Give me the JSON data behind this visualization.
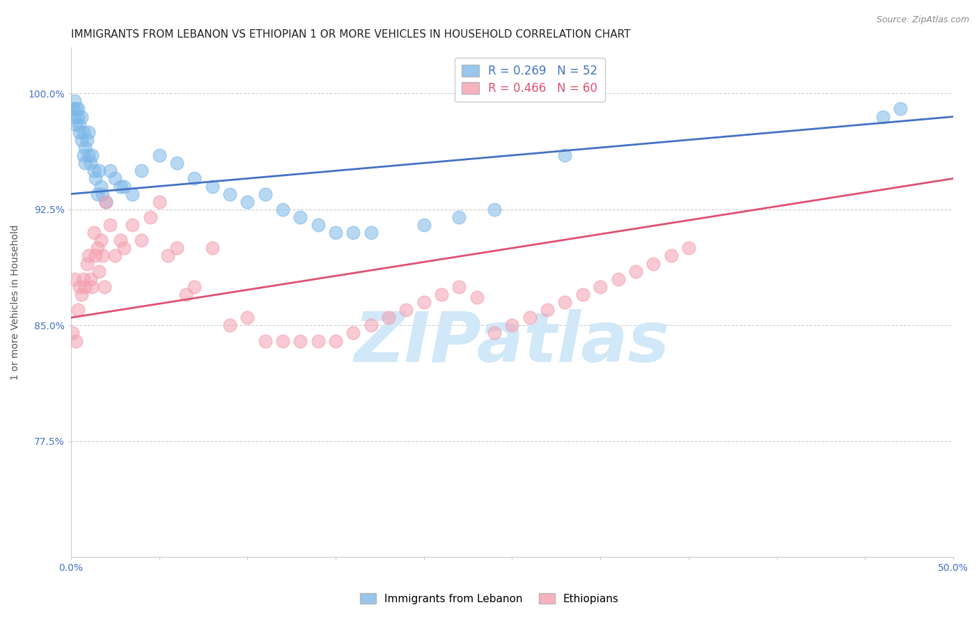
{
  "title": "IMMIGRANTS FROM LEBANON VS ETHIOPIAN 1 OR MORE VEHICLES IN HOUSEHOLD CORRELATION CHART",
  "source": "Source: ZipAtlas.com",
  "ylabel": "1 or more Vehicles in Household",
  "xlim": [
    0.0,
    0.5
  ],
  "ylim": [
    0.7,
    1.03
  ],
  "xticks": [
    0.0,
    0.05,
    0.1,
    0.15,
    0.2,
    0.25,
    0.3,
    0.35,
    0.4,
    0.45,
    0.5
  ],
  "xticklabels": [
    "0.0%",
    "",
    "",
    "",
    "",
    "",
    "",
    "",
    "",
    "",
    "50.0%"
  ],
  "yticks": [
    0.775,
    0.85,
    0.925,
    1.0
  ],
  "yticklabels": [
    "77.5%",
    "85.0%",
    "92.5%",
    "100.0%"
  ],
  "grid_color": "#cccccc",
  "legend_label_blue": "R = 0.269   N = 52",
  "legend_label_pink": "R = 0.466   N = 60",
  "blue_color": "#7eb8e8",
  "pink_color": "#f4a0b0",
  "blue_line_color": "#4472c4",
  "pink_line_color": "#e05070",
  "watermark": "ZIPatlas",
  "watermark_color": "#d0e8f8",
  "blue_x": [
    0.001,
    0.002,
    0.002,
    0.003,
    0.003,
    0.004,
    0.004,
    0.005,
    0.005,
    0.006,
    0.006,
    0.007,
    0.007,
    0.008,
    0.008,
    0.009,
    0.01,
    0.01,
    0.011,
    0.012,
    0.013,
    0.014,
    0.015,
    0.016,
    0.017,
    0.018,
    0.02,
    0.022,
    0.025,
    0.028,
    0.03,
    0.035,
    0.04,
    0.05,
    0.06,
    0.07,
    0.08,
    0.09,
    0.1,
    0.11,
    0.12,
    0.13,
    0.14,
    0.15,
    0.16,
    0.17,
    0.2,
    0.22,
    0.24,
    0.28,
    0.46,
    0.47
  ],
  "blue_y": [
    0.99,
    0.995,
    0.985,
    0.99,
    0.98,
    0.99,
    0.985,
    0.975,
    0.98,
    0.985,
    0.97,
    0.96,
    0.975,
    0.965,
    0.955,
    0.97,
    0.96,
    0.975,
    0.955,
    0.96,
    0.95,
    0.945,
    0.935,
    0.95,
    0.94,
    0.935,
    0.93,
    0.95,
    0.945,
    0.94,
    0.94,
    0.935,
    0.95,
    0.96,
    0.955,
    0.945,
    0.94,
    0.935,
    0.93,
    0.935,
    0.925,
    0.92,
    0.915,
    0.91,
    0.91,
    0.91,
    0.915,
    0.92,
    0.925,
    0.96,
    0.985,
    0.99
  ],
  "pink_x": [
    0.001,
    0.002,
    0.003,
    0.004,
    0.005,
    0.006,
    0.007,
    0.008,
    0.009,
    0.01,
    0.011,
    0.012,
    0.013,
    0.014,
    0.015,
    0.016,
    0.017,
    0.018,
    0.019,
    0.02,
    0.022,
    0.025,
    0.028,
    0.03,
    0.035,
    0.04,
    0.045,
    0.05,
    0.055,
    0.06,
    0.065,
    0.07,
    0.08,
    0.09,
    0.1,
    0.11,
    0.12,
    0.13,
    0.14,
    0.15,
    0.16,
    0.17,
    0.18,
    0.19,
    0.2,
    0.21,
    0.22,
    0.23,
    0.24,
    0.25,
    0.26,
    0.27,
    0.28,
    0.29,
    0.3,
    0.31,
    0.32,
    0.33,
    0.34,
    0.35
  ],
  "pink_y": [
    0.845,
    0.88,
    0.84,
    0.86,
    0.875,
    0.87,
    0.88,
    0.875,
    0.89,
    0.895,
    0.88,
    0.875,
    0.91,
    0.895,
    0.9,
    0.885,
    0.905,
    0.895,
    0.875,
    0.93,
    0.915,
    0.895,
    0.905,
    0.9,
    0.915,
    0.905,
    0.92,
    0.93,
    0.895,
    0.9,
    0.87,
    0.875,
    0.9,
    0.85,
    0.855,
    0.84,
    0.84,
    0.84,
    0.84,
    0.84,
    0.845,
    0.85,
    0.855,
    0.86,
    0.865,
    0.87,
    0.875,
    0.868,
    0.845,
    0.85,
    0.855,
    0.86,
    0.865,
    0.87,
    0.875,
    0.88,
    0.885,
    0.89,
    0.895,
    0.9
  ],
  "title_fontsize": 11,
  "axis_label_fontsize": 10,
  "tick_fontsize": 10,
  "legend_fontsize": 12,
  "source_fontsize": 9,
  "dot_size": 180,
  "dot_alpha": 0.55,
  "dot_linewidth": 1.2
}
